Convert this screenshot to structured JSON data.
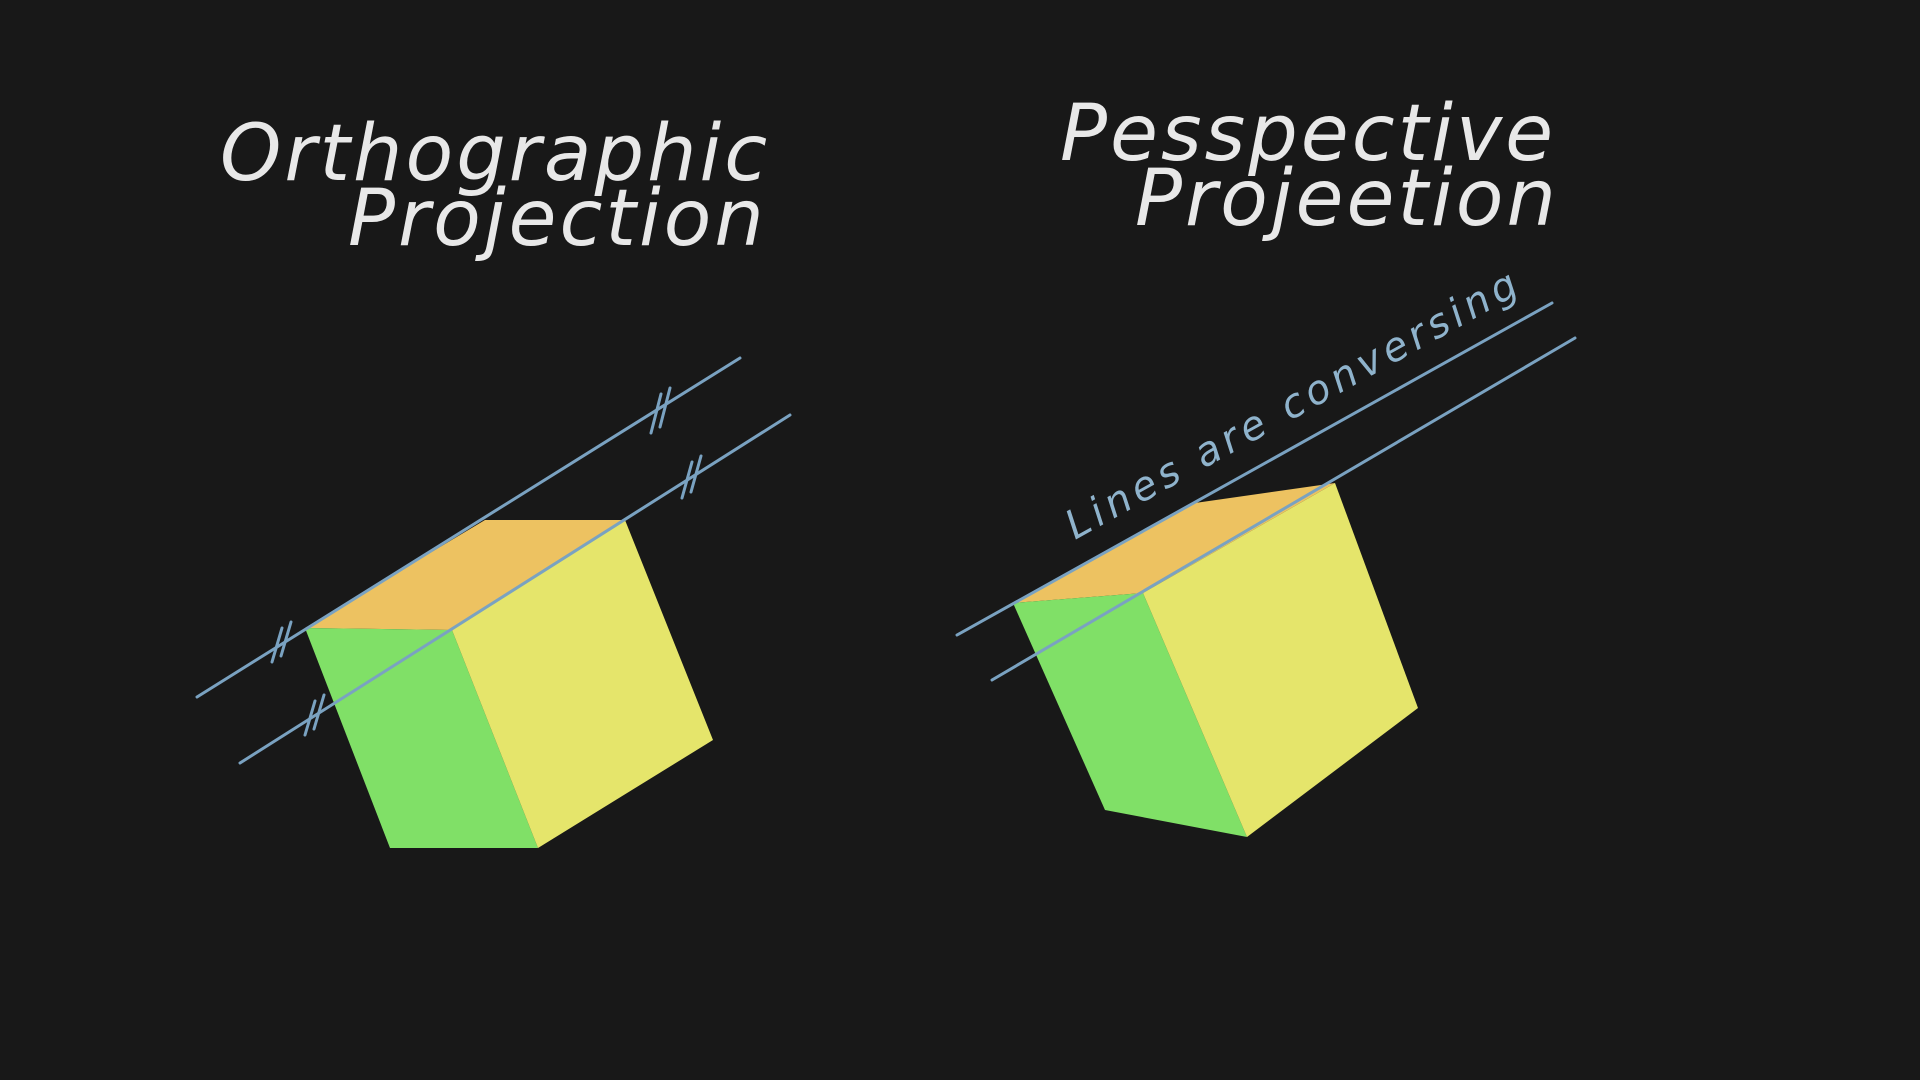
{
  "left_panel": {
    "title_line1": "Orthographic",
    "title_line2": "Projection"
  },
  "right_panel": {
    "title_line1": "Pesspective",
    "title_line2": "Projeetion",
    "annotation": "Lines are conversing"
  },
  "colors": {
    "background": "#181818",
    "chalk_white": "#e8e8e8",
    "guide_blue": "#7aa2c1",
    "face_top": "#edc261",
    "face_left": "#80e067",
    "face_right": "#e5e56b"
  }
}
